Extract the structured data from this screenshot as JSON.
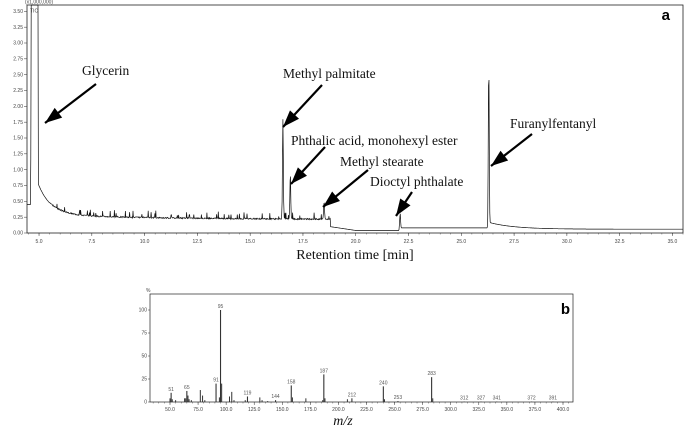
{
  "chart_data": [
    {
      "type": "line",
      "panel_label": "a",
      "y_scale_label": "(x1,000,000)",
      "trace_label": "TIC",
      "xlabel": "Retention time [min]",
      "xlim": [
        4.43,
        35.5
      ],
      "ylim": [
        0,
        3.6
      ],
      "x_ticks": [
        "5.0",
        "7.5",
        "10.0",
        "12.5",
        "15.0",
        "17.5",
        "20.0",
        "22.5",
        "25.0",
        "27.5",
        "30.0",
        "32.5",
        "35.0"
      ],
      "y_ticks": [
        "0.00",
        "0.25",
        "0.50",
        "0.75",
        "1.00",
        "1.25",
        "1.50",
        "1.75",
        "2.00",
        "2.25",
        "2.50",
        "2.75",
        "3.00",
        "3.25",
        "3.50"
      ],
      "peaks": [
        {
          "name": "Glycerin",
          "x": 4.75,
          "y": 3.6
        },
        {
          "name": "Methyl palmitate",
          "x": 16.55,
          "y": 1.78
        },
        {
          "name": "Phthalic acid, monohexyl ester",
          "x": 16.9,
          "y": 0.88
        },
        {
          "name": "Methyl stearate",
          "x": 18.5,
          "y": 0.48
        },
        {
          "name": "Dioctyl phthalate",
          "x": 22.1,
          "y": 0.33
        },
        {
          "name": "Furanylfentanyl",
          "x": 26.3,
          "y": 2.68
        }
      ]
    },
    {
      "type": "bar",
      "panel_label": "b",
      "ylabel": "%",
      "xlabel": "m/z",
      "xlim": [
        32,
        408
      ],
      "ylim": [
        0,
        115
      ],
      "x_ticks": [
        "50.0",
        "75.0",
        "100.0",
        "125.0",
        "150.0",
        "175.0",
        "200.0",
        "225.0",
        "250.0",
        "275.0",
        "300.0",
        "325.0",
        "350.0",
        "375.0",
        "400.0"
      ],
      "y_ticks": [
        "0",
        "25",
        "50",
        "75",
        "100"
      ],
      "labeled_peaks": [
        {
          "mz": 51,
          "intensity": 10,
          "label": "51"
        },
        {
          "mz": 65,
          "intensity": 12,
          "label": "65"
        },
        {
          "mz": 91,
          "intensity": 20,
          "label": "91"
        },
        {
          "mz": 95,
          "intensity": 100,
          "label": "95"
        },
        {
          "mz": 119,
          "intensity": 6,
          "label": "119"
        },
        {
          "mz": 144,
          "intensity": 2,
          "label": "144"
        },
        {
          "mz": 158,
          "intensity": 18,
          "label": "158"
        },
        {
          "mz": 187,
          "intensity": 30,
          "label": "187"
        },
        {
          "mz": 212,
          "intensity": 4,
          "label": "212"
        },
        {
          "mz": 240,
          "intensity": 17,
          "label": "240"
        },
        {
          "mz": 253,
          "intensity": 1,
          "label": "253"
        },
        {
          "mz": 283,
          "intensity": 27,
          "label": "283"
        },
        {
          "mz": 312,
          "intensity": 0.5,
          "label": "312"
        },
        {
          "mz": 327,
          "intensity": 0.5,
          "label": "327"
        },
        {
          "mz": 341,
          "intensity": 0.5,
          "label": "341"
        },
        {
          "mz": 372,
          "intensity": 0.5,
          "label": "372"
        },
        {
          "mz": 391,
          "intensity": 0.5,
          "label": "391"
        }
      ],
      "minor_peaks": [
        {
          "mz": 50,
          "intensity": 4
        },
        {
          "mz": 52,
          "intensity": 3
        },
        {
          "mz": 55,
          "intensity": 2
        },
        {
          "mz": 63,
          "intensity": 4
        },
        {
          "mz": 64,
          "intensity": 4
        },
        {
          "mz": 66,
          "intensity": 7
        },
        {
          "mz": 67,
          "intensity": 3
        },
        {
          "mz": 69,
          "intensity": 2
        },
        {
          "mz": 77,
          "intensity": 13
        },
        {
          "mz": 79,
          "intensity": 7
        },
        {
          "mz": 81,
          "intensity": 2
        },
        {
          "mz": 94,
          "intensity": 5
        },
        {
          "mz": 96,
          "intensity": 20
        },
        {
          "mz": 103,
          "intensity": 6
        },
        {
          "mz": 105,
          "intensity": 11
        },
        {
          "mz": 107,
          "intensity": 2
        },
        {
          "mz": 117,
          "intensity": 2
        },
        {
          "mz": 130,
          "intensity": 5
        },
        {
          "mz": 132,
          "intensity": 2
        },
        {
          "mz": 137,
          "intensity": 1
        },
        {
          "mz": 159,
          "intensity": 5
        },
        {
          "mz": 171,
          "intensity": 4
        },
        {
          "mz": 186,
          "intensity": 2
        },
        {
          "mz": 188,
          "intensity": 4
        },
        {
          "mz": 208,
          "intensity": 3
        },
        {
          "mz": 241,
          "intensity": 3
        },
        {
          "mz": 284,
          "intensity": 4
        }
      ]
    }
  ]
}
